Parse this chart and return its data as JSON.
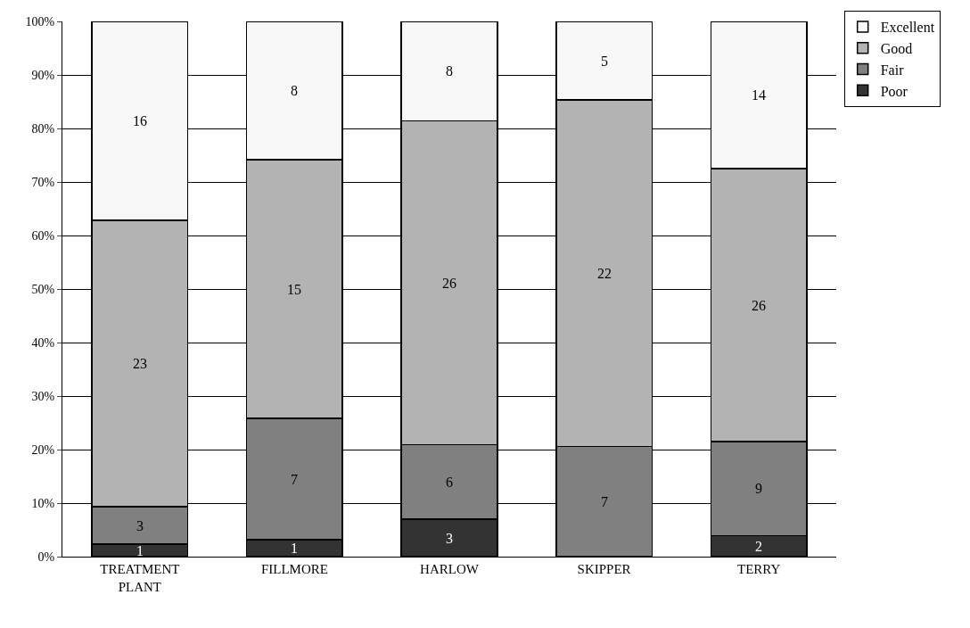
{
  "chart_data": {
    "type": "bar",
    "stacked": true,
    "categories": [
      "TREATMENT PLANT",
      "FILLMORE",
      "HARLOW",
      "SKIPPER",
      "TERRY"
    ],
    "series": [
      {
        "name": "Poor",
        "color": "#333333",
        "values": [
          2.3,
          3.2,
          7.0,
          0,
          3.9
        ]
      },
      {
        "name": "Fair",
        "color": "#808080",
        "values": [
          7.0,
          22.6,
          13.9,
          20.6,
          17.6
        ]
      },
      {
        "name": "Good",
        "color": "#b3b3b3",
        "values": [
          53.5,
          48.4,
          60.5,
          64.7,
          51.0
        ]
      },
      {
        "name": "Excellent",
        "color": "#f8f8f8",
        "values": [
          37.2,
          25.8,
          18.6,
          14.7,
          27.5
        ]
      }
    ],
    "ylim": [
      0,
      100
    ],
    "yticks": [
      {
        "value": 0,
        "label": "0%"
      },
      {
        "value": 10,
        "label": "10%"
      },
      {
        "value": 20,
        "label": "20%"
      },
      {
        "value": 30,
        "label": "30%"
      },
      {
        "value": 40,
        "label": "40%"
      },
      {
        "value": 50,
        "label": "50%"
      },
      {
        "value": 60,
        "label": "60%"
      },
      {
        "value": 70,
        "label": "70%"
      },
      {
        "value": 80,
        "label": "80%"
      },
      {
        "value": 90,
        "label": "90%"
      },
      {
        "value": 100,
        "label": "100%"
      }
    ],
    "annotations": [
      "1",
      "3",
      "23",
      "16",
      "1",
      "7",
      "15",
      "8",
      "3",
      "6",
      "26",
      "8",
      "7",
      "22",
      "5",
      "2",
      "9",
      "26",
      "14"
    ],
    "grid": "y",
    "legend": "top right"
  }
}
